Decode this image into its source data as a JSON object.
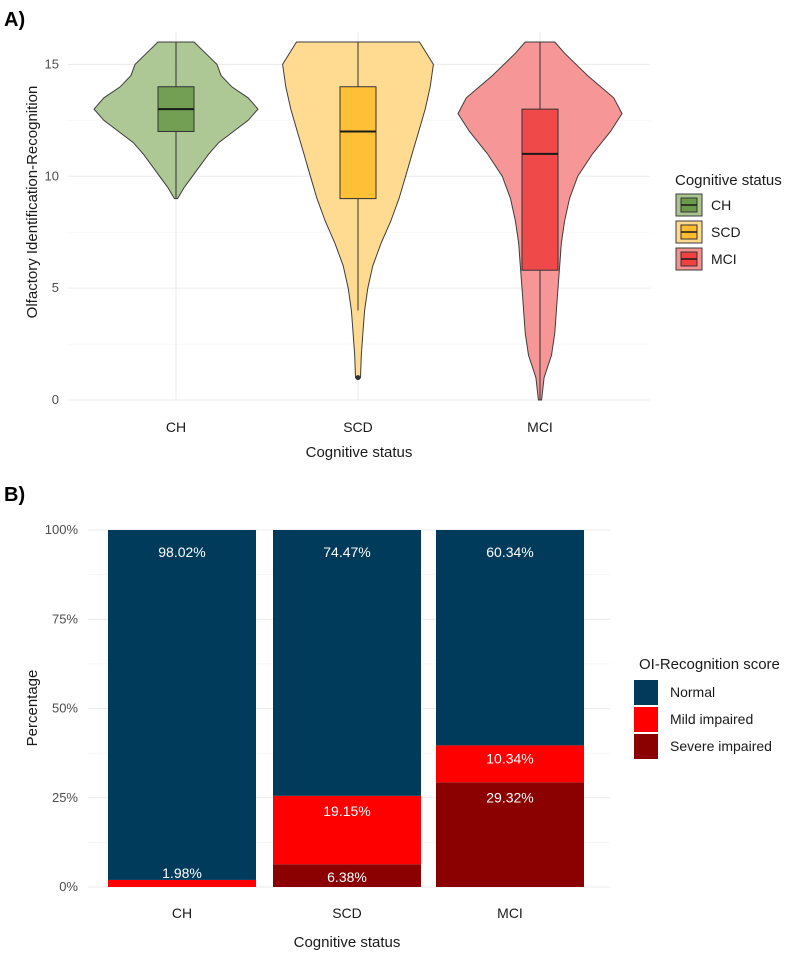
{
  "chart_data": [
    {
      "type": "violin",
      "panel_label": "A)",
      "xlabel": "Cognitive status",
      "ylabel": "Olfactory Identification-Recognition",
      "ylim": [
        0,
        16
      ],
      "yticks": [
        "0",
        "5",
        "10",
        "15"
      ],
      "categories": [
        "CH",
        "SCD",
        "MCI"
      ],
      "legend_title": "Cognitive status",
      "legend": [
        "CH",
        "SCD",
        "MCI"
      ],
      "groups": [
        {
          "name": "CH",
          "min": 9,
          "q1": 12,
          "median": 13,
          "q3": 14,
          "max": 16,
          "outliers": [],
          "fill": "#6b9a4b",
          "violin_fill": "#a9c48f",
          "density": [
            [
              9,
              0.02
            ],
            [
              9.5,
              0.1
            ],
            [
              10,
              0.2
            ],
            [
              10.5,
              0.3
            ],
            [
              11,
              0.4
            ],
            [
              11.5,
              0.52
            ],
            [
              12,
              0.7
            ],
            [
              12.5,
              0.88
            ],
            [
              13,
              1.0
            ],
            [
              13.5,
              0.88
            ],
            [
              14,
              0.68
            ],
            [
              14.5,
              0.55
            ],
            [
              15,
              0.5
            ],
            [
              15.5,
              0.36
            ],
            [
              16,
              0.22
            ]
          ]
        },
        {
          "name": "SCD",
          "min": 4,
          "q1": 9,
          "median": 12,
          "q3": 14,
          "max": 16,
          "outliers": [
            1
          ],
          "fill": "#ffbc2e",
          "violin_fill": "#ffd98c",
          "density": [
            [
              1,
              0.03
            ],
            [
              2,
              0.04
            ],
            [
              3,
              0.06
            ],
            [
              4,
              0.08
            ],
            [
              5,
              0.12
            ],
            [
              6,
              0.18
            ],
            [
              7,
              0.28
            ],
            [
              8,
              0.4
            ],
            [
              9,
              0.5
            ],
            [
              10,
              0.58
            ],
            [
              11,
              0.66
            ],
            [
              12,
              0.74
            ],
            [
              13,
              0.82
            ],
            [
              14,
              0.88
            ],
            [
              15,
              0.92
            ],
            [
              16,
              0.75
            ]
          ]
        },
        {
          "name": "MCI",
          "min": 0,
          "q1": 5.8,
          "median": 11,
          "q3": 13,
          "max": 16,
          "outliers": [],
          "fill": "#f04040",
          "violin_fill": "#f59090",
          "density": [
            [
              0,
              0.02
            ],
            [
              1,
              0.05
            ],
            [
              2,
              0.14
            ],
            [
              3,
              0.18
            ],
            [
              4,
              0.2
            ],
            [
              5,
              0.22
            ],
            [
              6,
              0.24
            ],
            [
              7,
              0.26
            ],
            [
              8,
              0.3
            ],
            [
              9,
              0.36
            ],
            [
              10,
              0.46
            ],
            [
              11,
              0.64
            ],
            [
              12,
              0.86
            ],
            [
              12.8,
              1.0
            ],
            [
              13.5,
              0.9
            ],
            [
              14.5,
              0.58
            ],
            [
              15.5,
              0.3
            ],
            [
              16,
              0.18
            ]
          ]
        }
      ]
    },
    {
      "type": "stacked_bar",
      "panel_label": "B)",
      "xlabel": "Cognitive status",
      "ylabel": "Percentage",
      "ylim": [
        0,
        100
      ],
      "yticks": [
        "0%",
        "25%",
        "50%",
        "75%",
        "100%"
      ],
      "categories": [
        "CH",
        "SCD",
        "MCI"
      ],
      "legend_title": "OI-Recognition score",
      "series": [
        {
          "name": "Severe impaired",
          "color": "#8b0000",
          "values": [
            0,
            6.38,
            29.32
          ],
          "labels": [
            "",
            "6.38%",
            "29.32%"
          ]
        },
        {
          "name": "Mild impaired",
          "color": "#ff0000",
          "values": [
            1.98,
            19.15,
            10.34
          ],
          "labels": [
            "1.98%",
            "19.15%",
            "10.34%"
          ]
        },
        {
          "name": "Normal",
          "color": "#003b5c",
          "values": [
            98.02,
            74.47,
            60.34
          ],
          "labels": [
            "98.02%",
            "74.47%",
            "60.34%"
          ]
        }
      ],
      "legend_order": [
        "Normal",
        "Mild impaired",
        "Severe impaired"
      ]
    }
  ]
}
